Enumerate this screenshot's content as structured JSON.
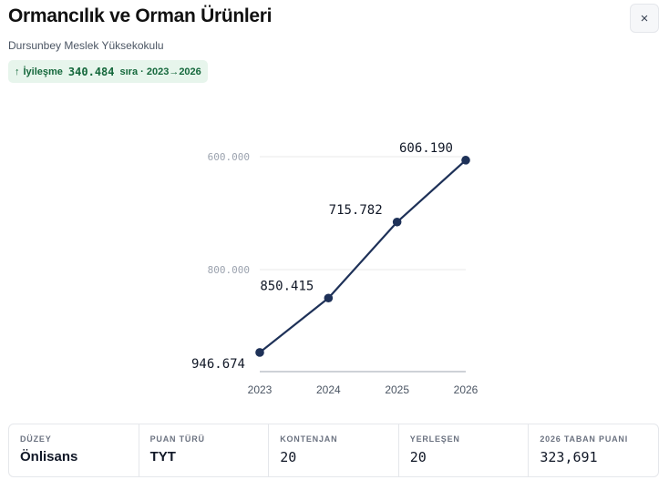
{
  "header": {
    "title": "Ormancılık ve Orman Ürünleri",
    "subtitle": "Dursunbey Meslek Yüksekokulu",
    "close_label": "×",
    "close_icon": "close-icon"
  },
  "badge": {
    "arrow": "↑",
    "word": "İyileşme",
    "value": "340.484",
    "suffix": "sıra · 2023→2026",
    "bg_color": "#e7f5ec",
    "text_color": "#15683c"
  },
  "chart_data": {
    "type": "line",
    "title": "",
    "xlabel": "",
    "ylabel": "",
    "y_inverted": true,
    "categories": [
      "2023",
      "2024",
      "2025",
      "2026"
    ],
    "values": [
      946674,
      850415,
      715782,
      606190
    ],
    "labels": [
      "946.674",
      "850.415",
      "715.782",
      "606.190"
    ],
    "yticks": [
      {
        "value": 600000,
        "label": "600.000"
      },
      {
        "value": 800000,
        "label": "800.000"
      }
    ],
    "ylim": [
      580000,
      980000
    ],
    "line_color": "#1e3158",
    "grid": true
  },
  "stats": [
    {
      "label": "DÜZEY",
      "value": "Önlisans",
      "mono": false
    },
    {
      "label": "PUAN TÜRÜ",
      "value": "TYT",
      "mono": false
    },
    {
      "label": "KONTENJAN",
      "value": "20",
      "mono": true
    },
    {
      "label": "YERLEŞEN",
      "value": "20",
      "mono": true
    },
    {
      "label": "2026 TABAN PUANI",
      "value": "323,691",
      "mono": true
    }
  ]
}
